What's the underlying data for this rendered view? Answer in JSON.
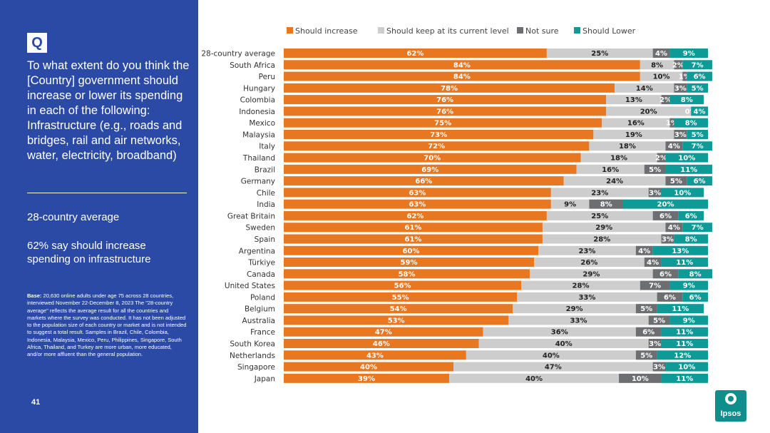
{
  "sidebar": {
    "q_label": "Q",
    "question": "To what extent do you think the [Country] government should increase or lower its spending in each of the following: Infrastructure (e.g., roads and bridges, rail and air networks, water, electricity, broadband)",
    "avg_title": "28-country average",
    "avg_text": "62% say should increase spending on infrastructure",
    "base_label": "Base:",
    "base_text": "20,630 online adults under age 75 across 28 countries, interviewed November 22-December 8, 2023 The \"28-country average\" reflects the average result for all the countries and markets where the survey was conducted. It has not been adjusted to the population size of each country or market and is not intended to suggest a total result. Samples in Brazil, Chile, Colombia, Indonesia, Malaysia, Mexico, Peru, Philippines, Singapore, South Africa, Thailand, and Turkey are more urban, more educated, and/or more affluent than the general population.",
    "page_number": "41"
  },
  "logo": {
    "text": "Ipsos"
  },
  "colors": {
    "sidebar": "#2b4aa6",
    "increase": "#e87722",
    "keep": "#cdcdcd",
    "not_sure": "#6d6e71",
    "lower": "#0e9a97"
  },
  "chart_data": {
    "type": "bar",
    "orientation": "horizontal",
    "stacked": true,
    "legend_position": "top",
    "xlim": [
      0,
      100
    ],
    "categories": [
      "28-country average",
      "South Africa",
      "Peru",
      "Hungary",
      "Colombia",
      "Indonesia",
      "Mexico",
      "Malaysia",
      "Italy",
      "Thailand",
      "Brazil",
      "Germany",
      "Chile",
      "India",
      "Great Britain",
      "Sweden",
      "Spain",
      "Argentina",
      "Türkiye",
      "Canada",
      "United States",
      "Poland",
      "Belgium",
      "Australia",
      "France",
      "South Korea",
      "Netherlands",
      "Singapore",
      "Japan"
    ],
    "series": [
      {
        "name": "Should increase",
        "color": "#e87722",
        "values": [
          62,
          84,
          84,
          78,
          76,
          76,
          75,
          73,
          72,
          70,
          69,
          66,
          63,
          63,
          62,
          61,
          61,
          60,
          59,
          58,
          56,
          55,
          54,
          53,
          47,
          46,
          43,
          40,
          39
        ]
      },
      {
        "name": "Should keep at its current level",
        "color": "#cdcdcd",
        "values": [
          25,
          8,
          10,
          14,
          13,
          20,
          16,
          19,
          18,
          18,
          16,
          24,
          23,
          9,
          25,
          29,
          28,
          23,
          26,
          29,
          28,
          33,
          29,
          33,
          36,
          40,
          40,
          47,
          40
        ]
      },
      {
        "name": "Not sure",
        "color": "#6d6e71",
        "values": [
          4,
          2,
          1,
          3,
          2,
          0,
          1,
          3,
          4,
          2,
          5,
          5,
          3,
          8,
          6,
          4,
          3,
          4,
          4,
          6,
          7,
          6,
          5,
          5,
          6,
          3,
          5,
          3,
          10
        ]
      },
      {
        "name": "Should Lower",
        "color": "#0e9a97",
        "values": [
          9,
          7,
          6,
          5,
          8,
          4,
          8,
          5,
          7,
          10,
          11,
          6,
          10,
          20,
          6,
          7,
          8,
          13,
          11,
          8,
          9,
          6,
          11,
          9,
          11,
          11,
          12,
          10,
          11
        ]
      }
    ]
  }
}
